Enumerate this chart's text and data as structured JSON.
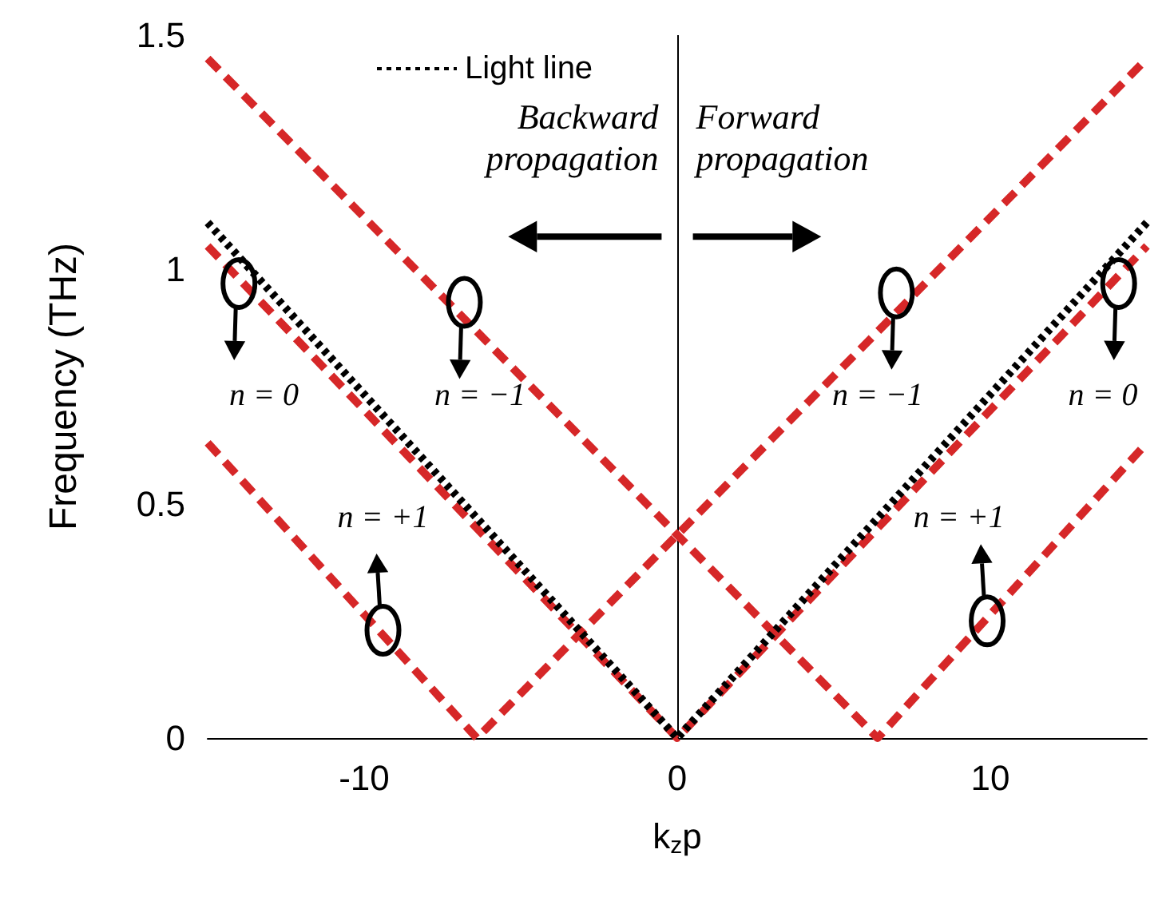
{
  "chart_data": {
    "type": "line",
    "xlabel": "k$_{z}$p",
    "ylabel": "Frequency (THz)",
    "xlim": [
      -15,
      15
    ],
    "xticks": [
      -10,
      0,
      10
    ],
    "ylim": [
      0,
      1.5
    ],
    "yticks": [
      0,
      0.5,
      1,
      1.5
    ],
    "grid": false,
    "legend": "top",
    "marker": "none",
    "ref_lines": [
      {
        "axis": "x",
        "value": 0,
        "color": "#000000",
        "line_style": "solid"
      }
    ],
    "series": [
      {
        "name": "Light line",
        "color": "#000000",
        "line_style": "dotted",
        "x": [
          -15,
          0,
          15
        ],
        "values": [
          1.1,
          0,
          1.1
        ]
      },
      {
        "color": "#d62728",
        "line_style": "dashed",
        "x": [
          -15,
          0,
          15
        ],
        "values": [
          1.05,
          0,
          1.05
        ]
      },
      {
        "color": "#d62728",
        "line_style": "dashed",
        "x": [
          -15,
          6.4,
          15
        ],
        "values": [
          1.45,
          0,
          0.63
        ]
      },
      {
        "color": "#d62728",
        "line_style": "dashed",
        "x": [
          -15,
          -6.4,
          15
        ],
        "values": [
          0.63,
          0,
          1.45
        ]
      }
    ],
    "annotations": [
      "Backward propagation",
      "Forward propagation",
      "n = 0",
      "n = −1",
      "n = −1",
      "n = 0",
      "n = +1",
      "n = +1"
    ]
  }
}
